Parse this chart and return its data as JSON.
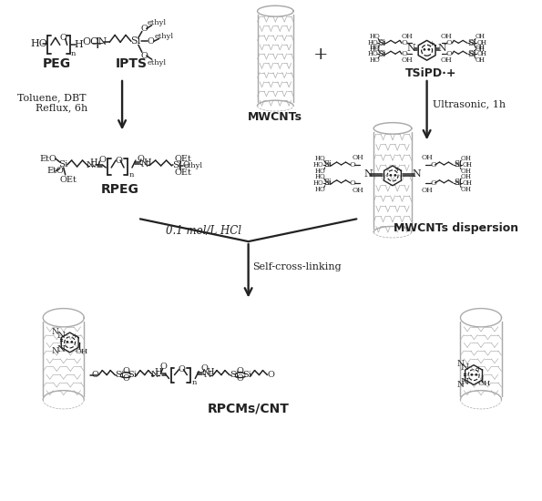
{
  "bg_color": "#ffffff",
  "line_color": "#222222",
  "labels": {
    "PEG": "PEG",
    "IPTS": "IPTS",
    "MWCNTs": "MWCNTs",
    "TSiPD": "TSiPD·+",
    "RPEG": "RPEG",
    "MWCNTs_dispersion": "MWCNTs dispersion",
    "RPCMs_CNT": "RPCMs/CNT",
    "toluene_line1": "Toluene, DBT",
    "toluene_line2": "Reflux, 6h",
    "ultrasonic": "Ultrasonic, 1h",
    "HCl": "0.1 mol/L HCl",
    "self_cross": "Self-cross-linking"
  }
}
